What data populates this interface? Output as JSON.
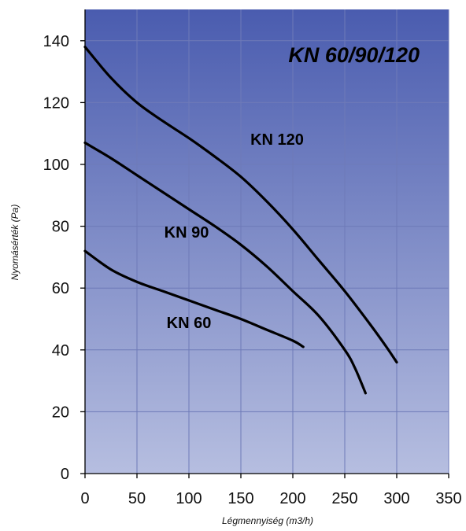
{
  "chart_data": {
    "type": "line",
    "title": "KN 60/90/120",
    "xlabel": "Légmennyiség (m3/h)",
    "ylabel": "Nyomásérték (Pa)",
    "xlim": [
      0,
      350
    ],
    "ylim": [
      0,
      145
    ],
    "x_ticks": [
      "0",
      "50",
      "100",
      "150",
      "200",
      "250",
      "300",
      "350"
    ],
    "y_ticks": [
      "0",
      "20",
      "40",
      "60",
      "80",
      "100",
      "120",
      "140"
    ],
    "grid": true,
    "legend": "none",
    "series": [
      {
        "name": "KN 120",
        "color": "#000000",
        "points": [
          [
            0,
            138
          ],
          [
            25,
            128
          ],
          [
            50,
            120
          ],
          [
            75,
            114
          ],
          [
            100,
            108.5
          ],
          [
            125,
            102.5
          ],
          [
            150,
            96
          ],
          [
            175,
            88
          ],
          [
            200,
            79
          ],
          [
            225,
            69
          ],
          [
            250,
            59
          ],
          [
            275,
            48
          ],
          [
            290,
            41
          ],
          [
            300,
            36
          ]
        ]
      },
      {
        "name": "KN 90",
        "color": "#000000",
        "points": [
          [
            0,
            107
          ],
          [
            25,
            102
          ],
          [
            50,
            96.5
          ],
          [
            75,
            91
          ],
          [
            100,
            85.5
          ],
          [
            125,
            80
          ],
          [
            150,
            74
          ],
          [
            175,
            67
          ],
          [
            200,
            59
          ],
          [
            225,
            51
          ],
          [
            250,
            40
          ],
          [
            260,
            34
          ],
          [
            270,
            26
          ]
        ]
      },
      {
        "name": "KN 60",
        "color": "#000000",
        "points": [
          [
            0,
            72
          ],
          [
            25,
            66
          ],
          [
            50,
            62
          ],
          [
            75,
            59
          ],
          [
            100,
            56
          ],
          [
            125,
            53
          ],
          [
            150,
            50
          ],
          [
            175,
            46.5
          ],
          [
            200,
            43
          ],
          [
            210,
            41
          ]
        ]
      }
    ]
  },
  "style": {
    "plot_bg_top": "#4a5caf",
    "plot_bg_bottom": "#b6bee0",
    "grid_color": "#6e7ab8",
    "line_color": "#000000"
  }
}
